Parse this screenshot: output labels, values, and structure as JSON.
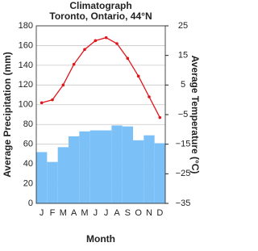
{
  "chart_data": {
    "type": "bar-line",
    "title": "Climatograph",
    "subtitle": "Toronto, Ontario, 44°N",
    "x_label": "Month",
    "y_label": "Average Precipitation (mm)",
    "y2_label": "Average Temperature (°C)",
    "categories": [
      "J",
      "F",
      "M",
      "A",
      "M",
      "J",
      "J",
      "A",
      "S",
      "O",
      "N",
      "D"
    ],
    "series": [
      {
        "name": "Precipitation",
        "color": "#7cc0f8",
        "values": [
          52,
          42,
          57,
          68,
          73,
          74,
          74,
          79,
          78,
          64,
          69,
          61
        ]
      },
      {
        "name": "Temperature",
        "color": "#e0151b",
        "axis": "y2",
        "values": [
          -1,
          0,
          5,
          12,
          17,
          20,
          21,
          19,
          14,
          8,
          1,
          -6
        ]
      }
    ],
    "ylim": [
      0,
      180
    ],
    "yticks": [
      0,
      20,
      40,
      60,
      80,
      100,
      120,
      140,
      160,
      180
    ],
    "y2lim": [
      -35,
      25
    ],
    "y2ticks": [
      {
        "value": -35,
        "label": "−35"
      },
      {
        "value": -25,
        "label": "−25"
      },
      {
        "value": -15,
        "label": "−15"
      },
      {
        "value": -5,
        "label": "−5"
      },
      5,
      15,
      25
    ],
    "grid": true
  }
}
